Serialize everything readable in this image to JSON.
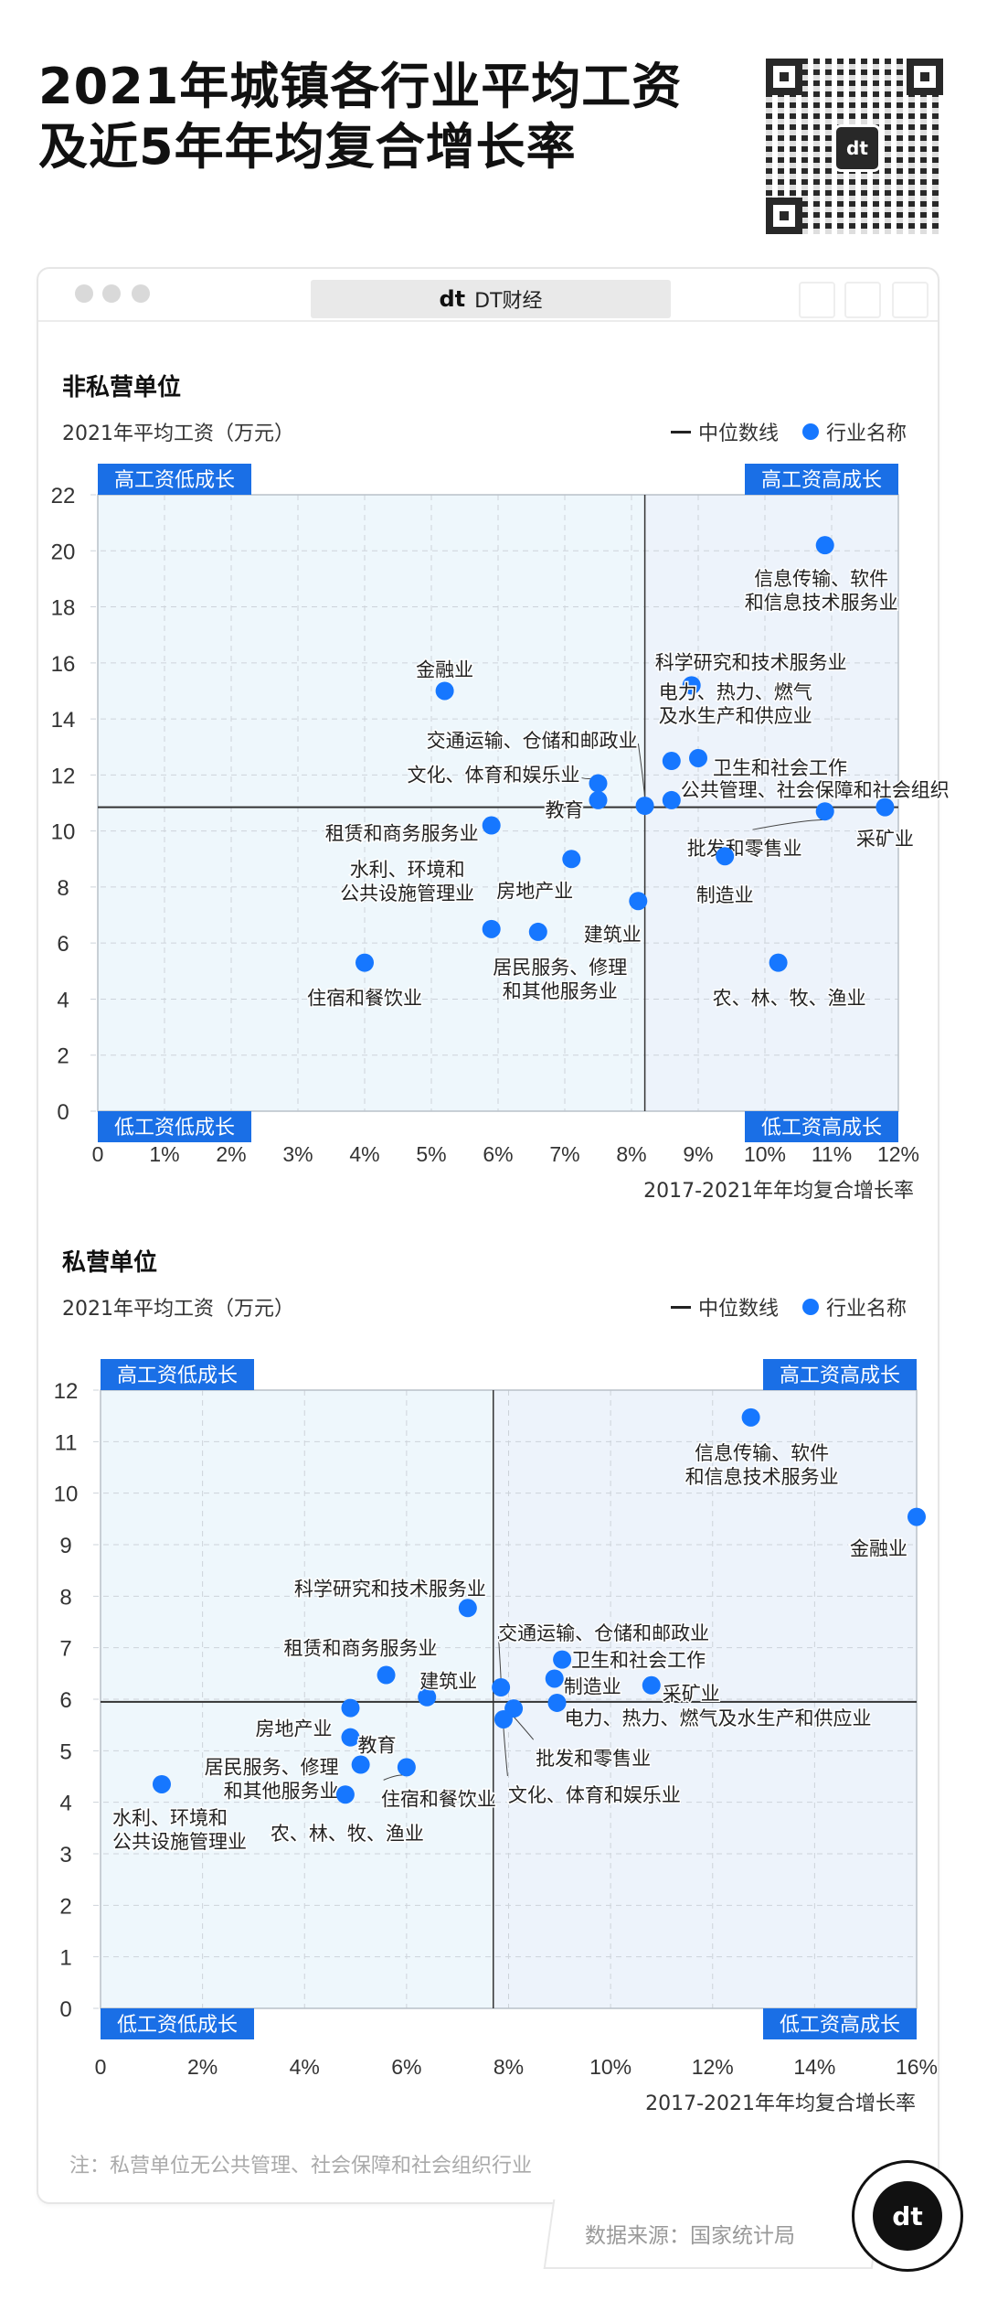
{
  "title": {
    "line1": "2021年城镇各行业平均工资",
    "line2": "及近5年年均复合增长率"
  },
  "window": {
    "tab_label": "DT财经",
    "logo_text": "dt"
  },
  "legend": {
    "median": "中位数线",
    "industry": "行业名称"
  },
  "colors": {
    "dot": "#1677ff",
    "quadrant_label_bg": "#1a6fe6",
    "median_line": "#333333",
    "plot_bg_left": "#eef7fc",
    "plot_bg_right": "#edf3fb"
  },
  "note": "注：私营单位无公共管理、社会保障和社会组织行业",
  "source": "数据来源：国家统计局",
  "chart_data": [
    {
      "type": "scatter",
      "title": "非私营单位",
      "ylabel": "2021年平均工资（万元）",
      "xlabel": "2017-2021年年均复合增长率",
      "xlim": [
        0,
        12
      ],
      "ylim": [
        0,
        22
      ],
      "xticks": [
        "0",
        "1%",
        "2%",
        "3%",
        "4%",
        "5%",
        "6%",
        "7%",
        "8%",
        "9%",
        "10%",
        "11%",
        "12%"
      ],
      "yticks": [
        "0",
        "2",
        "4",
        "6",
        "8",
        "10",
        "12",
        "14",
        "16",
        "18",
        "20",
        "22"
      ],
      "grid": true,
      "median": {
        "x": 8.2,
        "y": 10.85
      },
      "quadrants": {
        "top_left": "高工资低成长",
        "top_right": "高工资高成长",
        "bottom_left": "低工资低成长",
        "bottom_right": "低工资高成长"
      },
      "points": [
        {
          "label": [
            "信息传输、软件",
            "和信息技术服务业"
          ],
          "x": 10.9,
          "y": 20.2
        },
        {
          "label": [
            "金融业"
          ],
          "x": 5.2,
          "y": 15.0
        },
        {
          "label": [
            "科学研究和技术服务业"
          ],
          "x": 8.9,
          "y": 15.2
        },
        {
          "label": [
            "电力、热力、燃气",
            "及水生产和供应业"
          ],
          "x": 8.6,
          "y": 12.5
        },
        {
          "label": [
            "卫生和社会工作"
          ],
          "x": 9.0,
          "y": 12.6
        },
        {
          "label": [
            "公共管理、社会保障和社会组织"
          ],
          "x": 8.6,
          "y": 11.1
        },
        {
          "label": [
            "交通运输、仓储和邮政业"
          ],
          "x": 8.2,
          "y": 10.9
        },
        {
          "label": [
            "文化、体育和娱乐业"
          ],
          "x": 7.5,
          "y": 11.7
        },
        {
          "label": [
            "教育"
          ],
          "x": 7.5,
          "y": 11.1
        },
        {
          "label": [
            "租赁和商务服务业"
          ],
          "x": 5.9,
          "y": 10.2
        },
        {
          "label": [
            "采矿业"
          ],
          "x": 11.8,
          "y": 10.85
        },
        {
          "label": [
            "批发和零售业"
          ],
          "x": 10.9,
          "y": 10.7
        },
        {
          "label": [
            "制造业"
          ],
          "x": 9.4,
          "y": 9.1
        },
        {
          "label": [
            "房地产业"
          ],
          "x": 7.1,
          "y": 9.0
        },
        {
          "label": [
            "建筑业"
          ],
          "x": 8.1,
          "y": 7.5
        },
        {
          "label": [
            "水利、环境和",
            "公共设施管理业"
          ],
          "x": 5.9,
          "y": 6.5
        },
        {
          "label": [
            "居民服务、修理",
            "和其他服务业"
          ],
          "x": 6.6,
          "y": 6.4
        },
        {
          "label": [
            "住宿和餐饮业"
          ],
          "x": 4.0,
          "y": 5.3
        },
        {
          "label": [
            "农、林、牧、渔业"
          ],
          "x": 10.2,
          "y": 5.3
        }
      ]
    },
    {
      "type": "scatter",
      "title": "私营单位",
      "ylabel": "2021年平均工资（万元）",
      "xlabel": "2017-2021年年均复合增长率",
      "xlim": [
        0,
        16
      ],
      "ylim": [
        0,
        12
      ],
      "xticks": [
        "0",
        "2%",
        "4%",
        "6%",
        "8%",
        "10%",
        "12%",
        "14%",
        "16%"
      ],
      "yticks": [
        "0",
        "1",
        "2",
        "3",
        "4",
        "5",
        "6",
        "7",
        "8",
        "9",
        "10",
        "11",
        "12"
      ],
      "grid": true,
      "median": {
        "x": 7.7,
        "y": 5.95
      },
      "quadrants": {
        "top_left": "高工资低成长",
        "top_right": "高工资高成长",
        "bottom_left": "低工资低成长",
        "bottom_right": "低工资高成长"
      },
      "points": [
        {
          "label": [
            "信息传输、软件",
            "和信息技术服务业"
          ],
          "x": 12.75,
          "y": 11.47
        },
        {
          "label": [
            "金融业"
          ],
          "x": 16.0,
          "y": 9.54
        },
        {
          "label": [
            "科学研究和技术服务业"
          ],
          "x": 7.2,
          "y": 7.77
        },
        {
          "label": [
            "租赁和商务服务业"
          ],
          "x": 5.6,
          "y": 6.47
        },
        {
          "label": [
            "建筑业"
          ],
          "x": 6.4,
          "y": 6.04
        },
        {
          "label": [
            "交通运输、仓储和邮政业"
          ],
          "x": 7.85,
          "y": 6.23
        },
        {
          "label": [
            "卫生和社会工作"
          ],
          "x": 9.05,
          "y": 6.77
        },
        {
          "label": [
            "制造业"
          ],
          "x": 8.9,
          "y": 6.4
        },
        {
          "label": [
            "采矿业"
          ],
          "x": 10.8,
          "y": 6.27
        },
        {
          "label": [
            "电力、热力、燃气及水生产和供应业"
          ],
          "x": 8.95,
          "y": 5.93
        },
        {
          "label": [
            "批发和零售业"
          ],
          "x": 8.1,
          "y": 5.82
        },
        {
          "label": [
            "文化、体育和娱乐业"
          ],
          "x": 7.9,
          "y": 5.61
        },
        {
          "label": [
            "房地产业"
          ],
          "x": 4.9,
          "y": 5.83
        },
        {
          "label": [
            "教育"
          ],
          "x": 4.9,
          "y": 5.26
        },
        {
          "label": [
            "居民服务、修理",
            "和其他服务业"
          ],
          "x": 5.1,
          "y": 4.73
        },
        {
          "label": [
            "住宿和餐饮业"
          ],
          "x": 6.0,
          "y": 4.68
        },
        {
          "label": [
            "水利、环境和",
            "公共设施管理业"
          ],
          "x": 1.2,
          "y": 4.35
        },
        {
          "label": [
            "农、林、牧、渔业"
          ],
          "x": 4.8,
          "y": 4.15
        }
      ]
    }
  ]
}
